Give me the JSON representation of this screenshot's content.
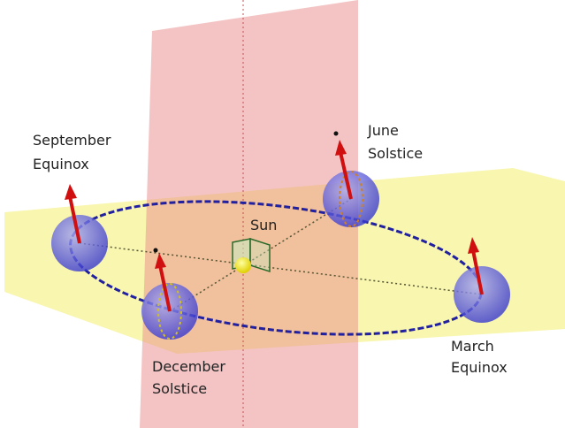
{
  "labels": [
    {
      "lines": [
        "September",
        "Equinox"
      ]
    },
    {
      "lines": [
        "June",
        "Solstice"
      ]
    },
    {
      "lines": [
        "Sun"
      ]
    },
    {
      "lines": [
        "December",
        "Solstice"
      ]
    },
    {
      "lines": [
        "March",
        "Equinox"
      ]
    }
  ]
}
